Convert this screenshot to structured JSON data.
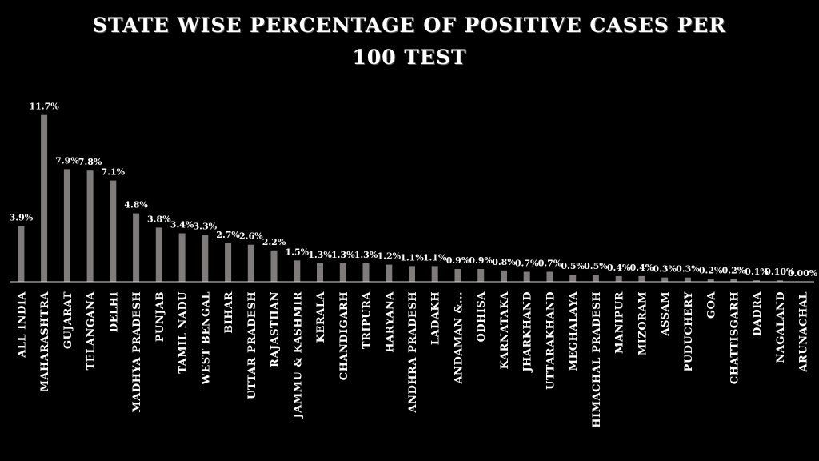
{
  "chart_data": {
    "type": "bar",
    "title_line1": "STATE WISE PERCENTAGE OF POSITIVE CASES PER",
    "title_line2": "100 TEST",
    "xlabel": "",
    "ylabel": "",
    "ylim": [
      0,
      12
    ],
    "grid": false,
    "legend": "none",
    "bar_color": "#7f7b7b",
    "categories": [
      "ALL INDIA",
      "MAHARASHTRA",
      "GUJARAT",
      "TELANGANA",
      "DELHI",
      "MADHYA PRADESH",
      "PUNJAB",
      "TAMIL NADU",
      "WEST BENGAL",
      "BIHAR",
      "UTTAR PRADESH",
      "RAJASTHAN",
      "JAMMU & KASHMIR",
      "KERALA",
      "CHANDIGARH",
      "TRIPURA",
      "HARYANA",
      "ANDHRA PRADESH",
      "LADAKH",
      "ANDAMAN &...",
      "ODHISA",
      "KARNATAKA",
      "JHARKHAND",
      "UTTARAKHAND",
      "MEGHALAYA",
      "HIMACHAL PRADESH",
      "MANIPUR",
      "MIZORAM",
      "ASSAM",
      "PUDUCHERY",
      "GOA",
      "CHATTISGARH",
      "DADRA",
      "NAGALAND",
      "ARUNACHAL"
    ],
    "values": [
      3.9,
      11.7,
      7.9,
      7.8,
      7.1,
      4.8,
      3.8,
      3.4,
      3.3,
      2.7,
      2.6,
      2.2,
      1.5,
      1.3,
      1.3,
      1.3,
      1.2,
      1.1,
      1.1,
      0.9,
      0.9,
      0.8,
      0.7,
      0.7,
      0.5,
      0.5,
      0.4,
      0.4,
      0.3,
      0.3,
      0.2,
      0.2,
      0.1,
      0.1,
      0.0
    ],
    "data_labels": [
      "3.9%",
      "11.7%",
      "7.9%",
      "7.8%",
      "7.1%",
      "4.8%",
      "3.8%",
      "3.4%",
      "3.3%",
      "2.7%",
      "2.6%",
      "2.2%",
      "1.5%",
      "1.3%",
      "1.3%",
      "1.3%",
      "1.2%",
      "1.1%",
      "1.1%",
      "0.9%",
      "0.9%",
      "0.8%",
      "0.7%",
      "0.7%",
      "0.5%",
      "0.5%",
      "0.4%",
      "0.4%",
      "0.3%",
      "0.3%",
      "0.2%",
      "0.2%",
      "0.1%",
      "0.10%",
      "0.00%"
    ]
  }
}
